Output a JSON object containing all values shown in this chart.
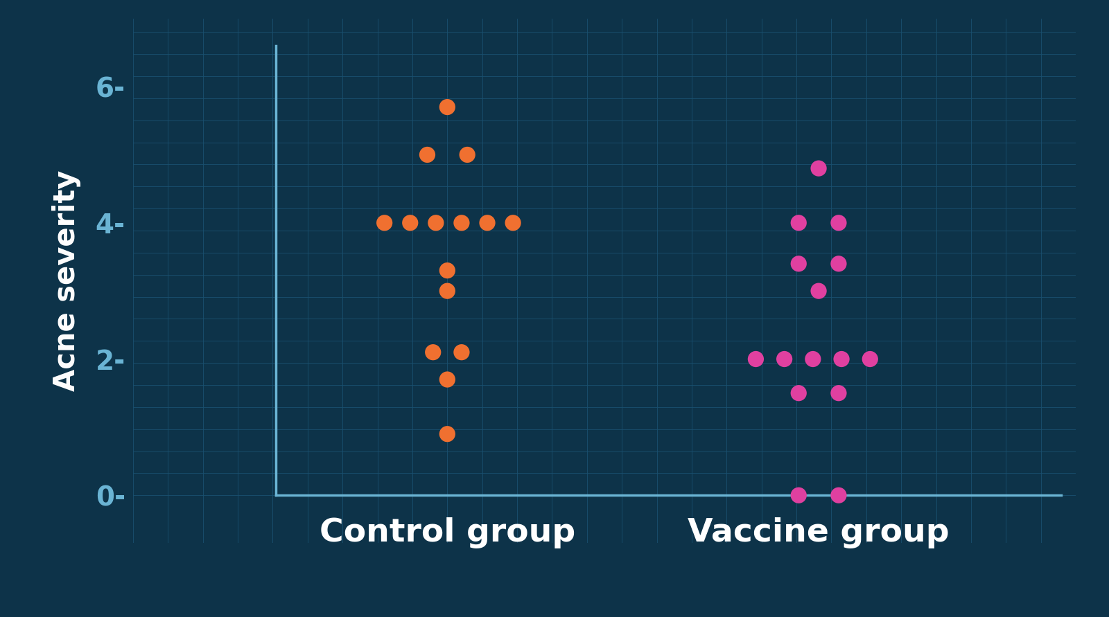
{
  "background_color": "#0d3349",
  "grid_color": "#1a5070",
  "axis_color": "#6ab4d4",
  "ylabel": "Acne severity",
  "xlabel_control": "Control group",
  "xlabel_vaccine": "Vaccine group",
  "yticks": [
    0,
    2,
    4,
    6
  ],
  "ytick_labels": [
    "0-",
    "2-",
    "4-",
    "6-"
  ],
  "ylim": [
    -0.7,
    7.0
  ],
  "xlim": [
    -0.1,
    3.2
  ],
  "control_x": 1.0,
  "vaccine_x": 2.3,
  "control_color": "#f07030",
  "vaccine_color": "#e040a0",
  "dot_size": 280,
  "control_dots": [
    [
      1.0,
      5.7
    ],
    [
      0.93,
      5.0
    ],
    [
      1.07,
      5.0
    ],
    [
      0.78,
      4.0
    ],
    [
      0.87,
      4.0
    ],
    [
      0.96,
      4.0
    ],
    [
      1.05,
      4.0
    ],
    [
      1.14,
      4.0
    ],
    [
      1.23,
      4.0
    ],
    [
      1.0,
      3.3
    ],
    [
      1.0,
      3.0
    ],
    [
      0.95,
      2.1
    ],
    [
      1.05,
      2.1
    ],
    [
      1.0,
      1.7
    ],
    [
      1.0,
      0.9
    ]
  ],
  "vaccine_dots": [
    [
      2.3,
      4.8
    ],
    [
      2.23,
      4.0
    ],
    [
      2.37,
      4.0
    ],
    [
      2.23,
      3.4
    ],
    [
      2.37,
      3.4
    ],
    [
      2.3,
      3.0
    ],
    [
      2.08,
      2.0
    ],
    [
      2.18,
      2.0
    ],
    [
      2.28,
      2.0
    ],
    [
      2.38,
      2.0
    ],
    [
      2.48,
      2.0
    ],
    [
      2.23,
      1.5
    ],
    [
      2.37,
      1.5
    ],
    [
      2.23,
      0.0
    ],
    [
      2.37,
      0.0
    ]
  ]
}
